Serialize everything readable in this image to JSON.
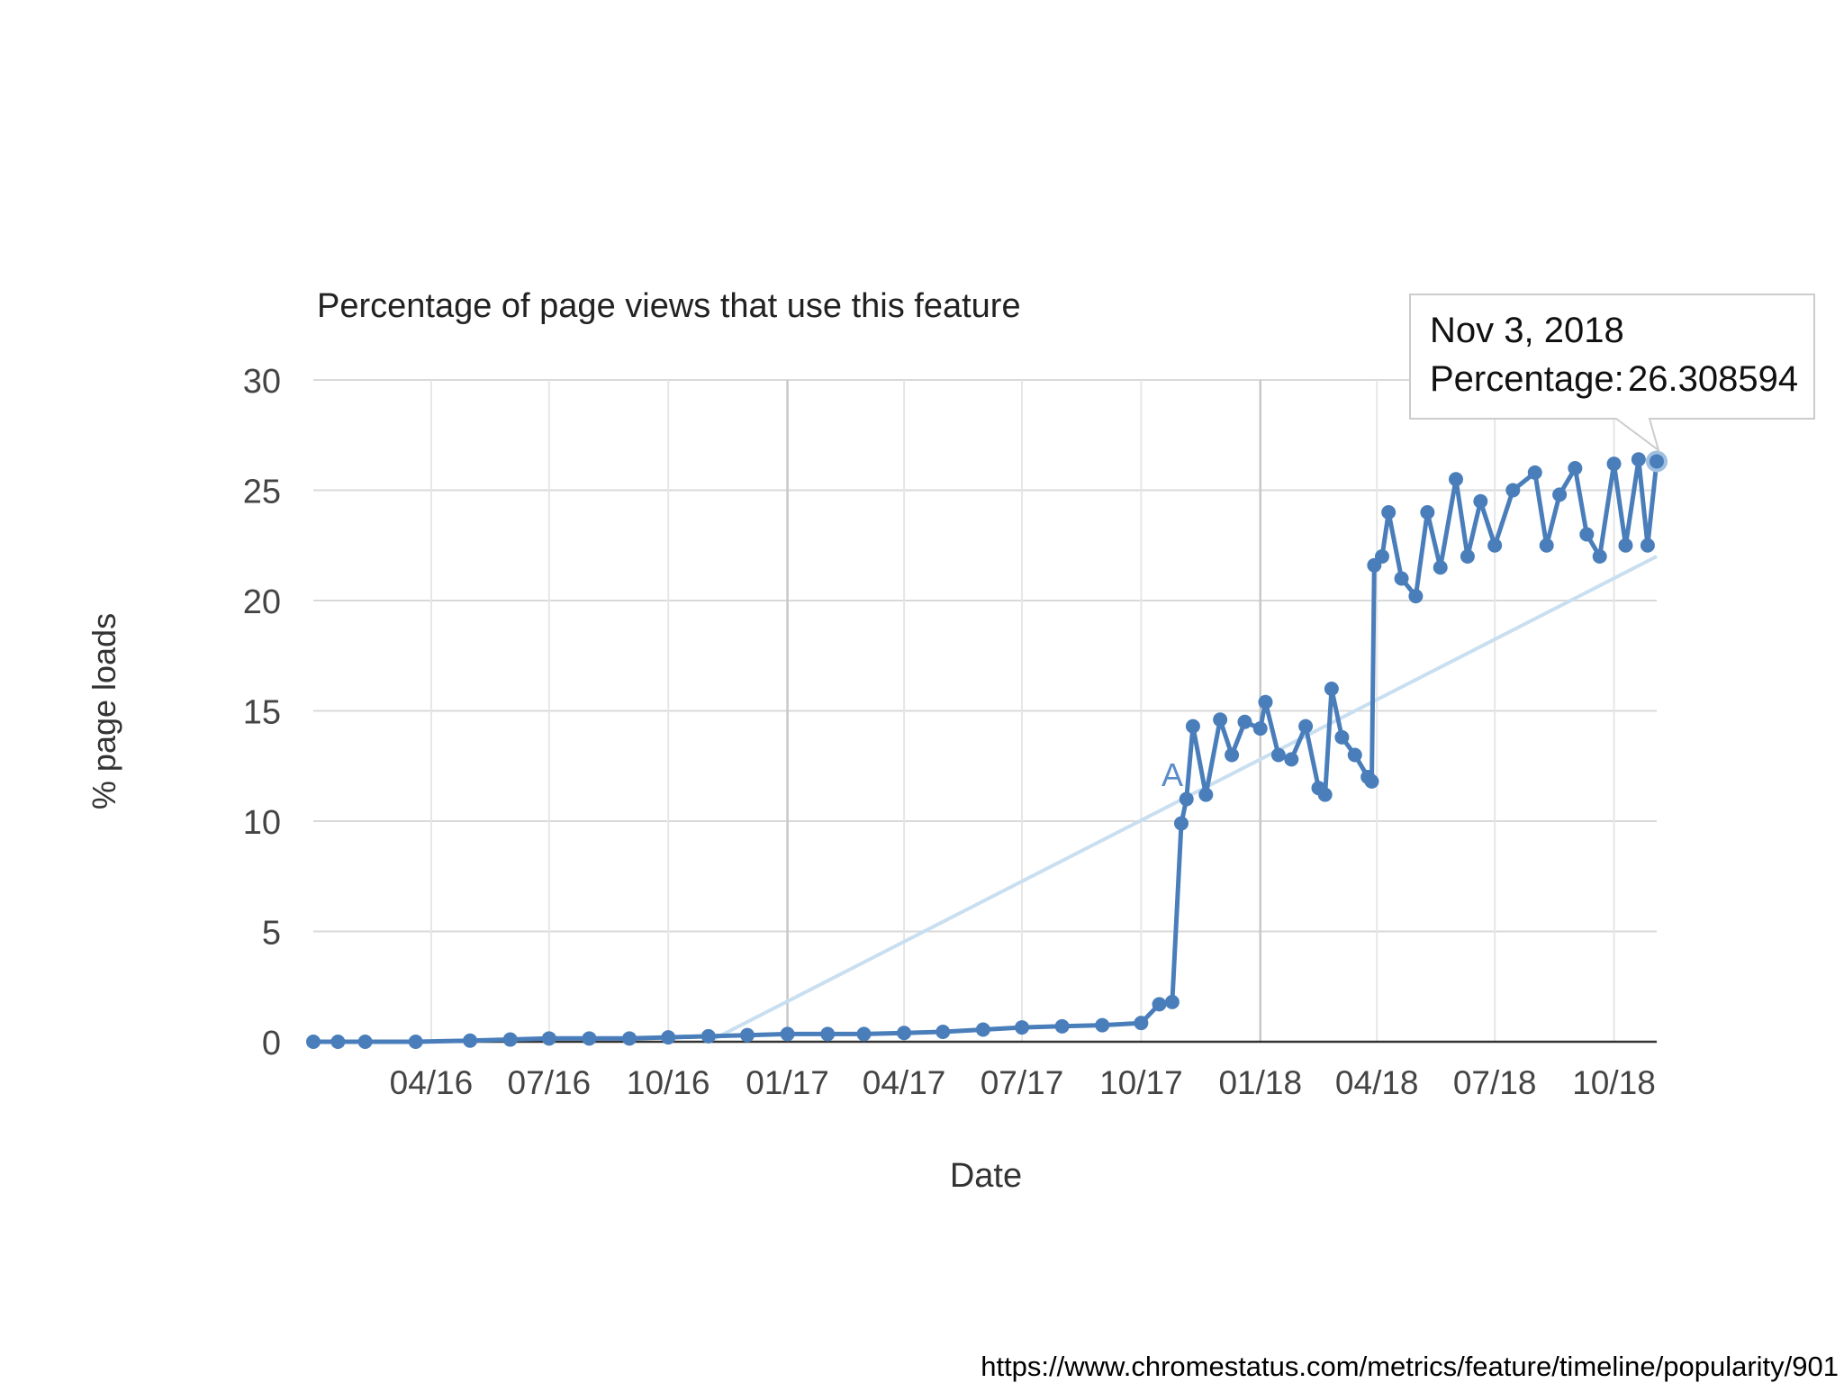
{
  "chart_data": {
    "type": "line",
    "title": "Percentage of page views that use this feature",
    "xlabel": "Date",
    "ylabel": "% page loads",
    "ylim": [
      0,
      30
    ],
    "yticks": [
      0,
      5,
      10,
      15,
      20,
      25,
      30
    ],
    "xlim": [
      "2016-01-01",
      "2018-11-03"
    ],
    "xtick_labels": [
      "04/16",
      "07/16",
      "10/16",
      "01/17",
      "04/17",
      "07/17",
      "10/17",
      "01/18",
      "04/18",
      "07/18",
      "10/18"
    ],
    "xtick_dates": [
      "2016-04-01",
      "2016-07-01",
      "2016-10-01",
      "2017-01-01",
      "2017-04-01",
      "2017-07-01",
      "2017-10-01",
      "2018-01-01",
      "2018-04-01",
      "2018-07-01",
      "2018-10-01"
    ],
    "grid": true,
    "legend": "none",
    "series": [
      {
        "points": [
          [
            "2016-01-01",
            0.0
          ],
          [
            "2016-01-20",
            0.0
          ],
          [
            "2016-02-10",
            0.0
          ],
          [
            "2016-03-20",
            0.0
          ],
          [
            "2016-05-01",
            0.05
          ],
          [
            "2016-06-01",
            0.1
          ],
          [
            "2016-07-01",
            0.15
          ],
          [
            "2016-08-01",
            0.15
          ],
          [
            "2016-09-01",
            0.15
          ],
          [
            "2016-10-01",
            0.2
          ],
          [
            "2016-11-01",
            0.25
          ],
          [
            "2016-12-01",
            0.3
          ],
          [
            "2017-01-01",
            0.35
          ],
          [
            "2017-02-01",
            0.35
          ],
          [
            "2017-03-01",
            0.35
          ],
          [
            "2017-04-01",
            0.4
          ],
          [
            "2017-05-01",
            0.45
          ],
          [
            "2017-06-01",
            0.55
          ],
          [
            "2017-07-01",
            0.65
          ],
          [
            "2017-08-01",
            0.7
          ],
          [
            "2017-09-01",
            0.75
          ],
          [
            "2017-10-01",
            0.85
          ],
          [
            "2017-10-15",
            1.7
          ],
          [
            "2017-10-25",
            1.8
          ],
          [
            "2017-11-01",
            9.9
          ],
          [
            "2017-11-05",
            11.0
          ],
          [
            "2017-11-10",
            14.3
          ],
          [
            "2017-11-20",
            11.2
          ],
          [
            "2017-12-01",
            14.6
          ],
          [
            "2017-12-10",
            13.0
          ],
          [
            "2017-12-20",
            14.5
          ],
          [
            "2018-01-01",
            14.2
          ],
          [
            "2018-01-05",
            15.4
          ],
          [
            "2018-01-15",
            13.0
          ],
          [
            "2018-01-25",
            12.8
          ],
          [
            "2018-02-05",
            14.3
          ],
          [
            "2018-02-15",
            11.5
          ],
          [
            "2018-02-20",
            11.2
          ],
          [
            "2018-02-25",
            16.0
          ],
          [
            "2018-03-05",
            13.8
          ],
          [
            "2018-03-15",
            13.0
          ],
          [
            "2018-03-25",
            12.0
          ],
          [
            "2018-03-28",
            11.8
          ],
          [
            "2018-03-30",
            21.6
          ],
          [
            "2018-04-05",
            22.0
          ],
          [
            "2018-04-10",
            24.0
          ],
          [
            "2018-04-20",
            21.0
          ],
          [
            "2018-05-01",
            20.2
          ],
          [
            "2018-05-10",
            24.0
          ],
          [
            "2018-05-20",
            21.5
          ],
          [
            "2018-06-01",
            25.5
          ],
          [
            "2018-06-10",
            22.0
          ],
          [
            "2018-06-20",
            24.5
          ],
          [
            "2018-07-01",
            22.5
          ],
          [
            "2018-07-15",
            25.0
          ],
          [
            "2018-08-01",
            25.8
          ],
          [
            "2018-08-10",
            22.5
          ],
          [
            "2018-08-20",
            24.8
          ],
          [
            "2018-09-01",
            26.0
          ],
          [
            "2018-09-10",
            23.0
          ],
          [
            "2018-09-20",
            22.0
          ],
          [
            "2018-10-01",
            26.2
          ],
          [
            "2018-10-10",
            22.5
          ],
          [
            "2018-10-20",
            26.4
          ],
          [
            "2018-10-27",
            22.5
          ],
          [
            "2018-11-03",
            26.308594
          ]
        ]
      }
    ],
    "trendline": [
      [
        "2016-11-01",
        0.0
      ],
      [
        "2018-11-03",
        22.0
      ]
    ],
    "annotations": [
      {
        "text": "A",
        "x": "2017-11-01",
        "y": 11.6
      }
    ],
    "tooltip": {
      "date": "Nov 3, 2018",
      "label": "Percentage:",
      "value": "26.308594"
    },
    "colors": {
      "series": "#4a7ebb",
      "trendline": "#c9dff0",
      "grid": "#d9d9d9",
      "axis": "#333333"
    }
  },
  "source_url": "https://www.chromestatus.com/metrics/feature/timeline/popularity/901"
}
